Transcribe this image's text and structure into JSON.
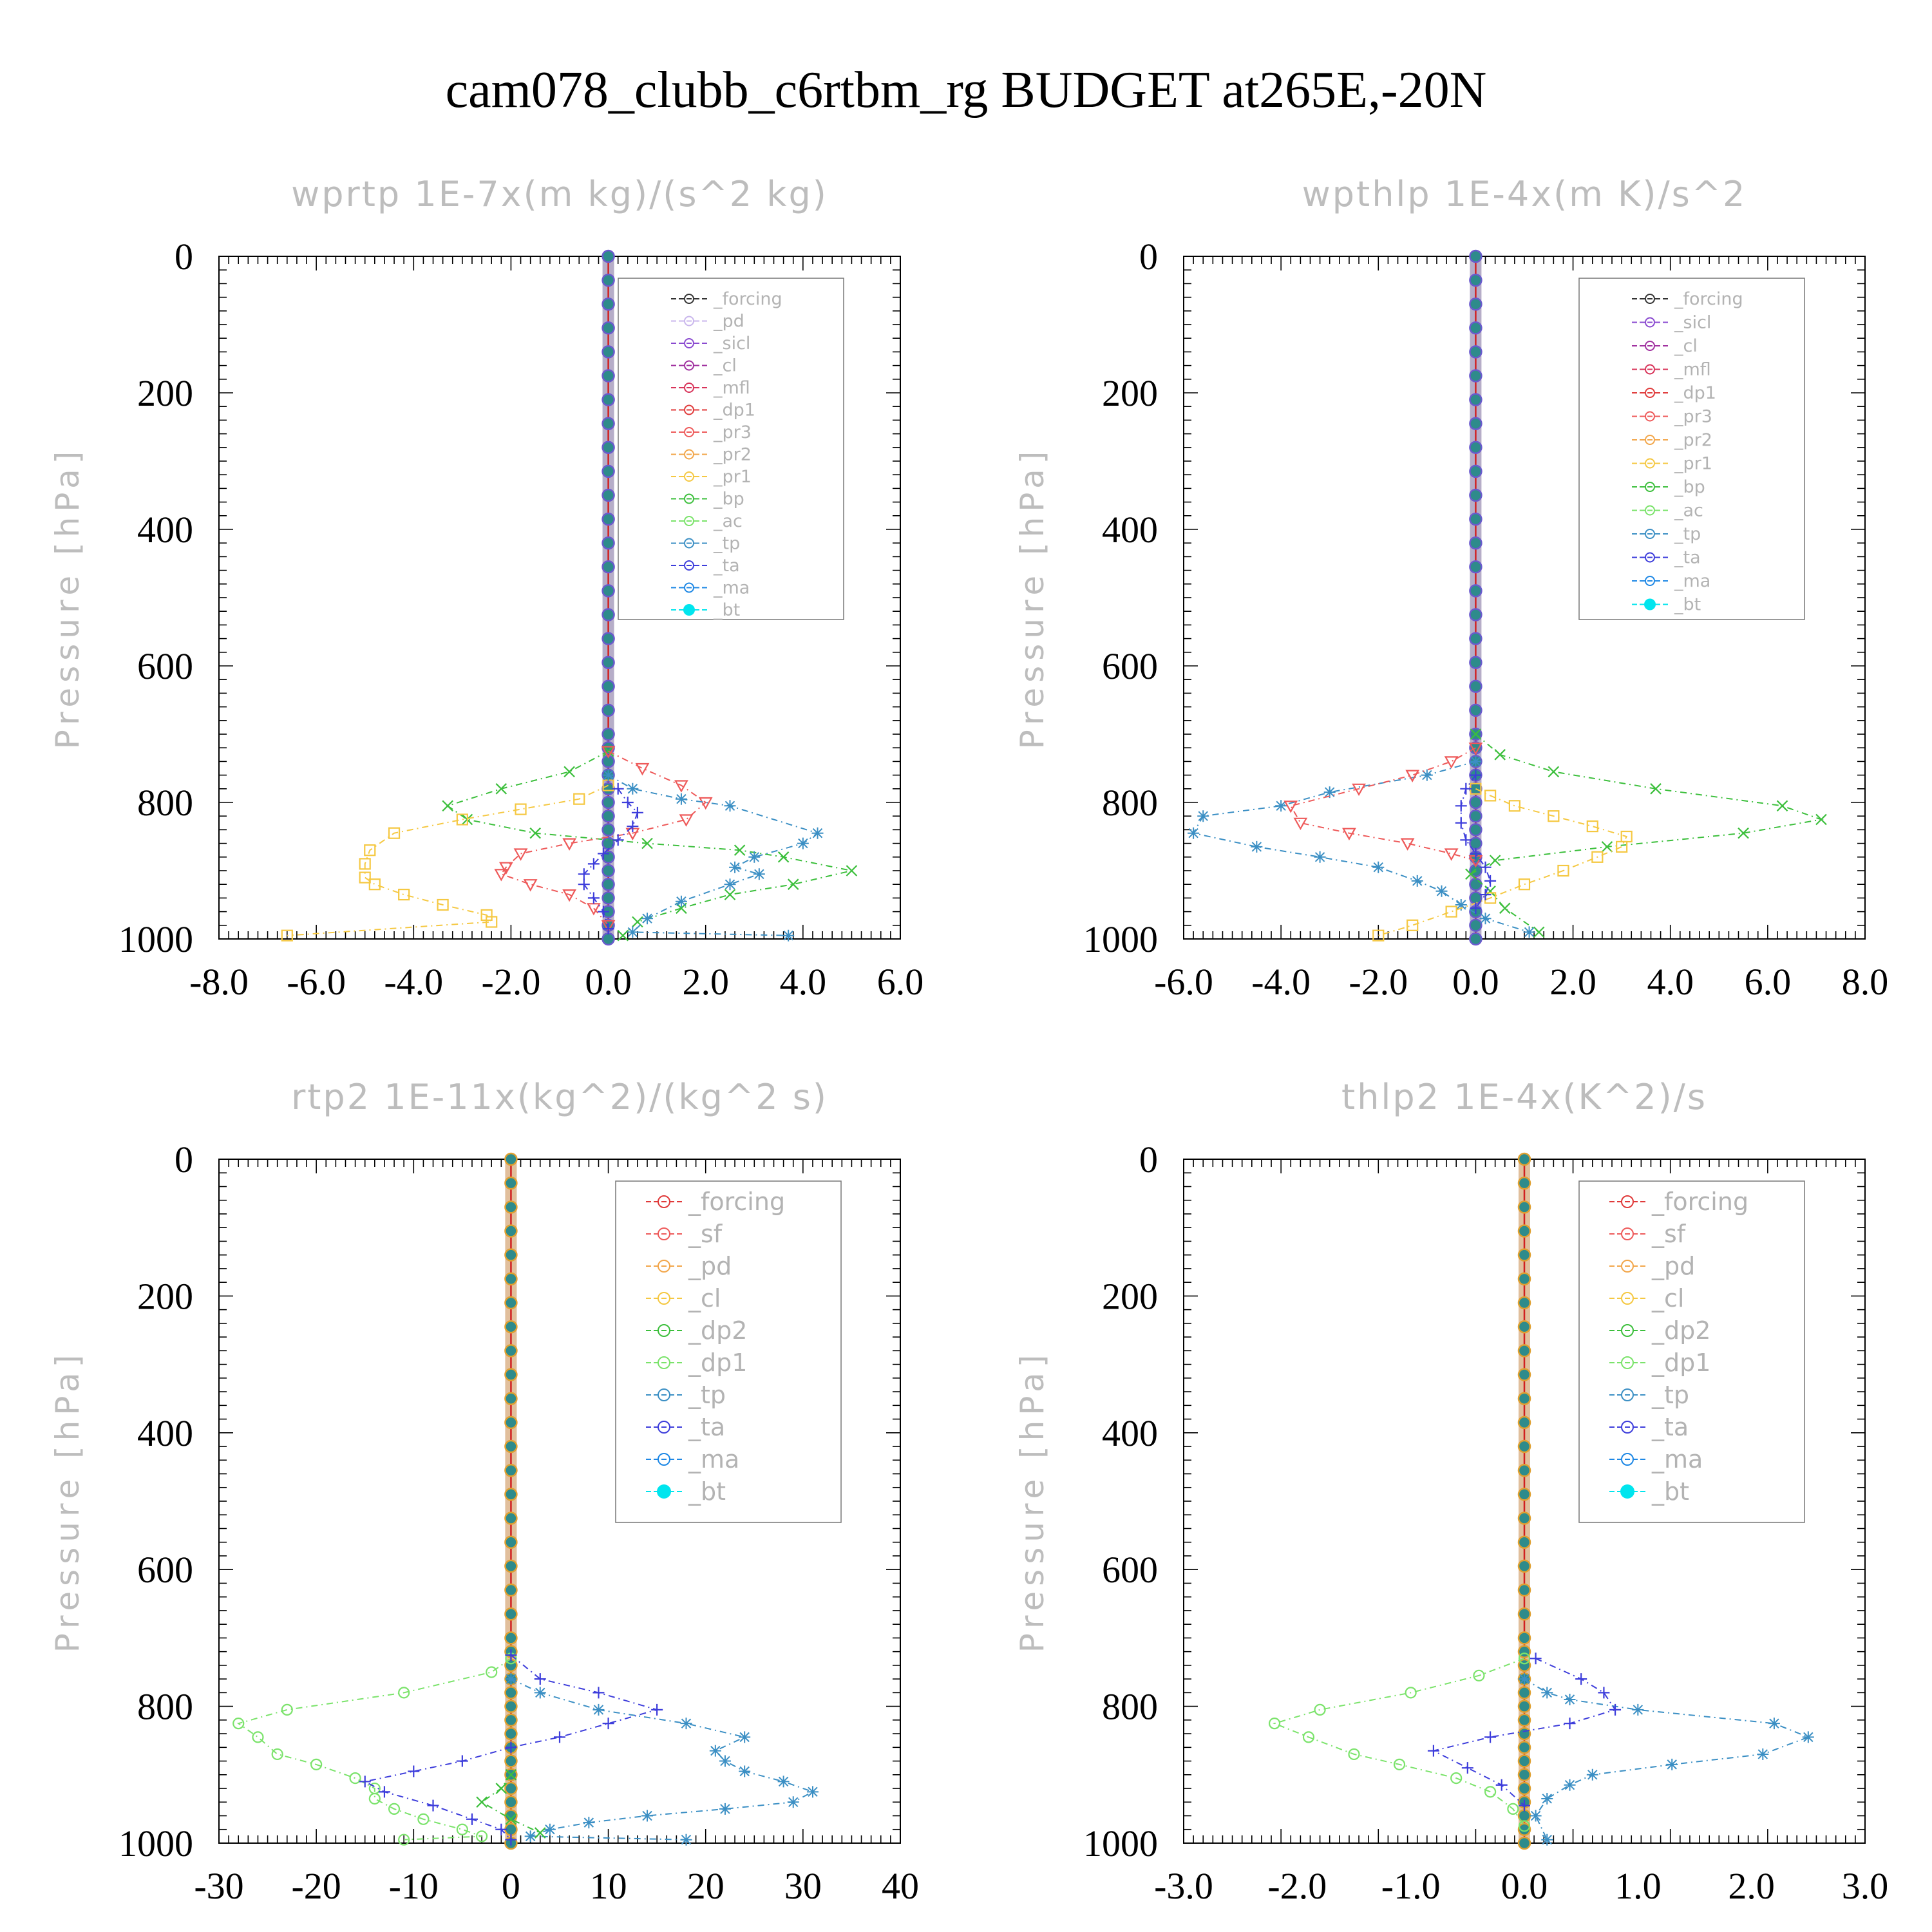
{
  "title": "cam078_clubb_c6rtbm_rg  BUDGET at265E,-20N",
  "colors": {
    "black": "#333333",
    "lavender": "#c9b6ec",
    "purple": "#8a4ad0",
    "magenta": "#a0309f",
    "crimson": "#d8345a",
    "red": "#e03a3a",
    "salmon": "#ee5a5a",
    "orange": "#f2a64a",
    "yellow": "#f5c842",
    "green": "#3cbf3c",
    "lightgreen": "#7be36b",
    "steelblue": "#3b8fc4",
    "blue": "#3d3ddb",
    "dodger": "#1e88e5",
    "cyan": "#00e5ee"
  },
  "chart_data": [
    {
      "type": "line",
      "title": "wprtp  1E-7x(m kg)/(s^2 kg)",
      "ylabel": "Pressure [hPa]",
      "xlim": [
        -8,
        6
      ],
      "ylim": [
        1000,
        0
      ],
      "xticks": [
        "-8.0",
        "-6.0",
        "-4.0",
        "-2.0",
        "0.0",
        "2.0",
        "4.0",
        "6.0"
      ],
      "yticks": [
        "0",
        "200",
        "400",
        "600",
        "800",
        "1000"
      ],
      "legend_position": "top-right",
      "legend": [
        "_forcing",
        "_pd",
        "_sicl",
        "_cl",
        "_mfl",
        "_dp1",
        "_pr3",
        "_pr2",
        "_pr1",
        "_bp",
        "_ac",
        "_tp",
        "_ta",
        "_ma",
        "_bt"
      ],
      "series": [
        {
          "name": "_bp",
          "color": "green",
          "x": [
            0,
            -0.8,
            -2.2,
            -3.3,
            -2.9,
            -1.5,
            0.8,
            2.7,
            3.6,
            5.0,
            3.8,
            2.5,
            1.5,
            0.6,
            0.3
          ],
          "y": [
            725,
            755,
            780,
            805,
            825,
            845,
            860,
            870,
            880,
            900,
            920,
            935,
            955,
            975,
            995
          ]
        },
        {
          "name": "_pr1",
          "color": "yellow",
          "x": [
            0,
            -0.6,
            -1.8,
            -3.0,
            -4.4,
            -4.9,
            -5.0,
            -5.0,
            -4.8,
            -4.2,
            -3.4,
            -2.5,
            -2.4,
            -6.6
          ],
          "y": [
            775,
            795,
            810,
            825,
            845,
            870,
            890,
            910,
            920,
            935,
            950,
            965,
            975,
            995
          ]
        },
        {
          "name": "_pr3",
          "color": "salmon",
          "x": [
            0,
            0.7,
            1.5,
            2.0,
            1.6,
            0.5,
            -0.8,
            -1.8,
            -2.1,
            -2.2,
            -1.6,
            -0.8,
            -0.3,
            0
          ],
          "y": [
            725,
            750,
            775,
            800,
            825,
            845,
            860,
            875,
            895,
            905,
            920,
            935,
            955,
            980
          ]
        },
        {
          "name": "_tp",
          "color": "steelblue",
          "x": [
            0,
            0.5,
            1.5,
            2.5,
            4.3,
            4.0,
            3.0,
            2.6,
            3.1,
            2.5,
            1.5,
            0.8,
            0.5,
            3.7
          ],
          "y": [
            760,
            780,
            795,
            805,
            845,
            860,
            880,
            895,
            905,
            920,
            945,
            970,
            990,
            995
          ]
        },
        {
          "name": "_ta",
          "color": "blue",
          "x": [
            0.2,
            0.4,
            0.6,
            0.5,
            0.2,
            -0.1,
            -0.3,
            -0.5,
            -0.5,
            -0.3,
            -0.1,
            0
          ],
          "y": [
            780,
            800,
            815,
            835,
            855,
            875,
            890,
            905,
            920,
            940,
            960,
            985
          ]
        }
      ]
    },
    {
      "type": "line",
      "title": "wpthlp  1E-4x(m K)/s^2",
      "ylabel": "Pressure [hPa]",
      "xlim": [
        -6,
        8
      ],
      "ylim": [
        1000,
        0
      ],
      "xticks": [
        "-6.0",
        "-4.0",
        "-2.0",
        "0.0",
        "2.0",
        "4.0",
        "6.0",
        "8.0"
      ],
      "yticks": [
        "0",
        "200",
        "400",
        "600",
        "800",
        "1000"
      ],
      "legend_position": "top-right",
      "legend": [
        "_forcing",
        "_sicl",
        "_cl",
        "_mfl",
        "_dp1",
        "_pr3",
        "_pr2",
        "_pr1",
        "_bp",
        "_ac",
        "_tp",
        "_ta",
        "_ma",
        "_bt"
      ],
      "series": [
        {
          "name": "_bp",
          "color": "green",
          "x": [
            0,
            0.5,
            1.6,
            3.7,
            6.3,
            7.1,
            5.5,
            2.7,
            0.4,
            -0.1,
            0.3,
            0.6,
            1.3
          ],
          "y": [
            700,
            730,
            755,
            780,
            805,
            825,
            845,
            865,
            885,
            905,
            930,
            955,
            990
          ]
        },
        {
          "name": "_tp",
          "color": "steelblue",
          "x": [
            0,
            -1.0,
            -3.0,
            -4.0,
            -5.6,
            -5.8,
            -4.5,
            -3.2,
            -2.0,
            -1.2,
            -0.7,
            -0.3,
            0.2,
            1.1
          ],
          "y": [
            740,
            760,
            785,
            805,
            820,
            845,
            865,
            880,
            895,
            915,
            930,
            950,
            970,
            990
          ]
        },
        {
          "name": "_pr3",
          "color": "salmon",
          "x": [
            0,
            -0.5,
            -1.3,
            -2.4,
            -3.8,
            -3.6,
            -2.6,
            -1.4,
            -0.5,
            0
          ],
          "y": [
            720,
            740,
            760,
            780,
            805,
            830,
            845,
            860,
            875,
            885
          ]
        },
        {
          "name": "_pr1",
          "color": "yellow",
          "x": [
            0,
            0.3,
            0.8,
            1.6,
            2.4,
            3.1,
            3.0,
            2.5,
            1.8,
            1.0,
            0.3,
            -0.5,
            -1.3,
            -2.0
          ],
          "y": [
            780,
            790,
            805,
            820,
            835,
            850,
            865,
            880,
            900,
            920,
            940,
            960,
            980,
            995
          ]
        },
        {
          "name": "_ta",
          "color": "blue",
          "x": [
            0,
            -0.2,
            -0.3,
            -0.3,
            -0.2,
            0,
            0.2,
            0.3,
            0.2,
            0
          ],
          "y": [
            760,
            780,
            805,
            830,
            855,
            875,
            895,
            915,
            935,
            955
          ]
        }
      ]
    },
    {
      "type": "line",
      "title": "rtp2  1E-11x(kg^2)/(kg^2 s)",
      "ylabel": "Pressure [hPa]",
      "xlim": [
        -30,
        40
      ],
      "ylim": [
        1000,
        0
      ],
      "xticks": [
        "-30",
        "-20",
        "-10",
        "0",
        "10",
        "20",
        "30",
        "40"
      ],
      "yticks": [
        "0",
        "200",
        "400",
        "600",
        "800",
        "1000"
      ],
      "legend_position": "top-right",
      "legend": [
        "_forcing",
        "_sf",
        "_pd",
        "_cl",
        "_dp2",
        "_dp1",
        "_tp",
        "_ta",
        "_ma",
        "_bt"
      ],
      "series": [
        {
          "name": "_dp1",
          "color": "lightgreen",
          "x": [
            0,
            -2,
            -11,
            -23,
            -28,
            -26,
            -24,
            -20,
            -16,
            -14,
            -14,
            -12,
            -9,
            -5,
            -3,
            -11
          ],
          "y": [
            730,
            750,
            780,
            805,
            825,
            845,
            870,
            885,
            905,
            920,
            935,
            950,
            965,
            980,
            990,
            995
          ]
        },
        {
          "name": "_tp",
          "color": "steelblue",
          "x": [
            0,
            3,
            9,
            18,
            24,
            21,
            22,
            24,
            28,
            31,
            29,
            22,
            14,
            8,
            4,
            2,
            18
          ],
          "y": [
            760,
            780,
            805,
            825,
            845,
            865,
            880,
            895,
            910,
            925,
            940,
            950,
            960,
            970,
            980,
            990,
            995
          ]
        },
        {
          "name": "_ta",
          "color": "blue",
          "x": [
            0,
            3,
            9,
            15,
            10,
            5,
            0,
            -5,
            -10,
            -15,
            -13,
            -8,
            -4,
            -1,
            0
          ],
          "y": [
            725,
            760,
            780,
            805,
            825,
            845,
            860,
            880,
            895,
            910,
            925,
            945,
            965,
            980,
            995
          ]
        },
        {
          "name": "_dp2",
          "color": "green",
          "x": [
            0,
            -1,
            -3,
            0,
            3
          ],
          "y": [
            900,
            920,
            940,
            965,
            985
          ]
        }
      ]
    },
    {
      "type": "line",
      "title": "thlp2  1E-4x(K^2)/s",
      "ylabel": "Pressure [hPa]",
      "xlim": [
        -3,
        3
      ],
      "ylim": [
        1000,
        0
      ],
      "xticks": [
        "-3.0",
        "-2.0",
        "-1.0",
        "0.0",
        "1.0",
        "2.0",
        "3.0"
      ],
      "yticks": [
        "0",
        "200",
        "400",
        "600",
        "800",
        "1000"
      ],
      "legend_position": "top-right",
      "legend": [
        "_forcing",
        "_sf",
        "_pd",
        "_cl",
        "_dp2",
        "_dp1",
        "_tp",
        "_ta",
        "_ma",
        "_bt"
      ],
      "series": [
        {
          "name": "_dp1",
          "color": "lightgreen",
          "x": [
            0,
            -0.4,
            -1.0,
            -1.8,
            -2.2,
            -1.9,
            -1.5,
            -1.1,
            -0.6,
            -0.3,
            -0.1,
            0
          ],
          "y": [
            730,
            755,
            780,
            805,
            825,
            845,
            870,
            885,
            905,
            925,
            950,
            975
          ]
        },
        {
          "name": "_tp",
          "color": "steelblue",
          "x": [
            0,
            0.2,
            0.4,
            1.0,
            2.2,
            2.5,
            2.1,
            1.3,
            0.6,
            0.4,
            0.2,
            0.1,
            0.2
          ],
          "y": [
            760,
            780,
            790,
            805,
            825,
            845,
            870,
            885,
            900,
            915,
            935,
            960,
            995
          ]
        },
        {
          "name": "_ta",
          "color": "blue",
          "x": [
            0.1,
            0.5,
            0.7,
            0.8,
            0.4,
            -0.3,
            -0.8,
            -0.5,
            -0.2,
            0
          ],
          "y": [
            730,
            760,
            780,
            805,
            825,
            845,
            865,
            890,
            915,
            945
          ]
        }
      ]
    }
  ]
}
